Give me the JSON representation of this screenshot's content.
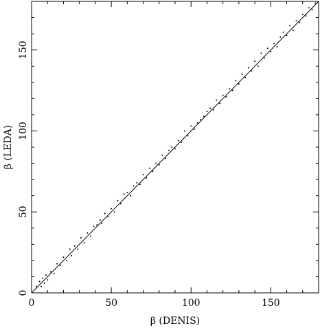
{
  "chart_data": {
    "type": "scatter",
    "xlabel": "β (DENIS)",
    "ylabel": "β (LEDA)",
    "xlim": [
      0,
      180
    ],
    "ylim": [
      0,
      180
    ],
    "xticks": [
      0,
      50,
      100,
      150
    ],
    "yticks": [
      0,
      50,
      100,
      150
    ],
    "xminorticks": [
      10,
      20,
      30,
      40,
      60,
      70,
      80,
      90,
      110,
      120,
      130,
      140,
      160,
      170
    ],
    "yminorticks": [
      10,
      20,
      30,
      40,
      60,
      70,
      80,
      90,
      110,
      120,
      130,
      140,
      160,
      170
    ],
    "color": "#000000",
    "x": [
      3,
      5,
      6,
      7,
      8,
      9,
      10,
      12,
      14,
      16,
      18,
      20,
      22,
      24,
      25,
      27,
      29,
      31,
      33,
      35,
      37,
      39,
      41,
      43,
      44,
      46,
      48,
      50,
      52,
      54,
      56,
      58,
      60,
      62,
      64,
      66,
      68,
      70,
      72,
      74,
      76,
      78,
      80,
      82,
      84,
      86,
      88,
      90,
      92,
      94,
      96,
      98,
      100,
      102,
      104,
      106,
      108,
      110,
      112,
      114,
      116,
      118,
      120,
      122,
      124,
      126,
      128,
      130,
      132,
      134,
      136,
      138,
      140,
      142,
      144,
      146,
      148,
      150,
      152,
      154,
      156,
      158,
      160,
      162,
      164,
      166,
      168,
      170,
      172,
      174,
      176,
      178
    ],
    "values": [
      4,
      7,
      4,
      9,
      6,
      11,
      8,
      13,
      12,
      18,
      17,
      22,
      20,
      27,
      23,
      29,
      27,
      34,
      31,
      37,
      35,
      41,
      42,
      45,
      43,
      49,
      47,
      52,
      50,
      57,
      55,
      61,
      62,
      60,
      66,
      68,
      67,
      73,
      71,
      77,
      75,
      80,
      79,
      85,
      83,
      88,
      90,
      89,
      94,
      93,
      100,
      97,
      103,
      101,
      105,
      107,
      109,
      112,
      114,
      113,
      119,
      117,
      122,
      121,
      126,
      125,
      131,
      129,
      135,
      133,
      139,
      137,
      143,
      140,
      148,
      145,
      151,
      149,
      154,
      152,
      158,
      161,
      159,
      165,
      162,
      168,
      167,
      172,
      171,
      176,
      175,
      179
    ],
    "fit": {
      "x": [
        0,
        180
      ],
      "values": [
        0,
        180
      ]
    }
  }
}
